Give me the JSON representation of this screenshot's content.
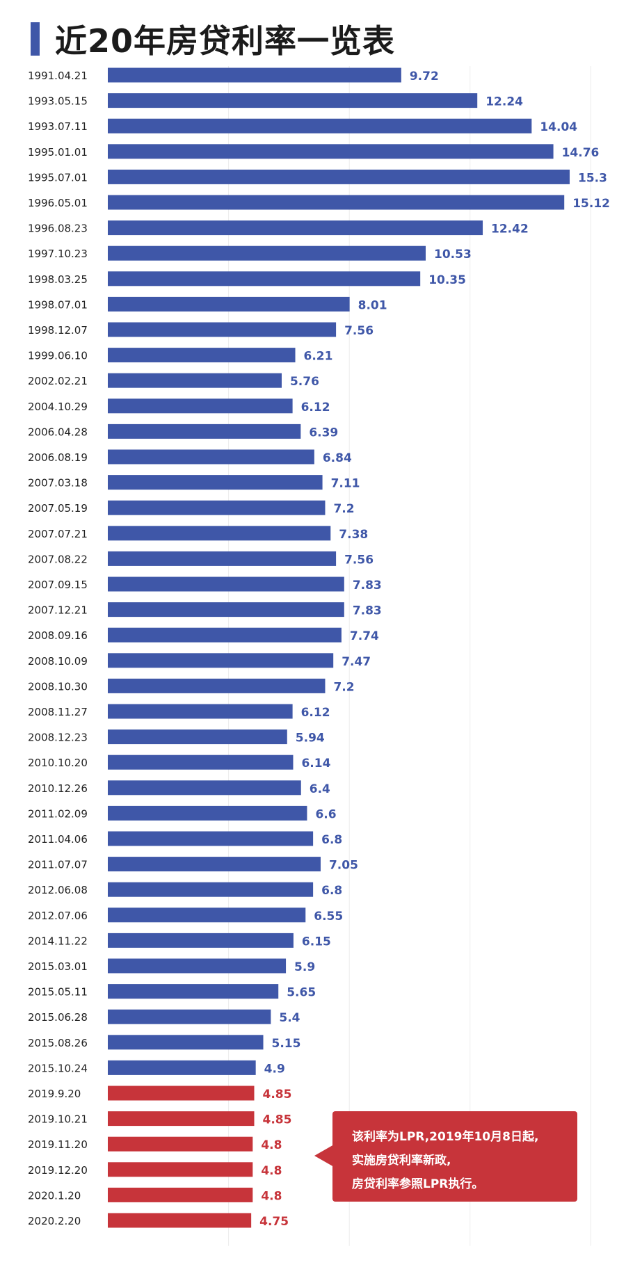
{
  "title": "近20年房贷利率一览表",
  "colors": {
    "accent": "#3f57a8",
    "highlight": "#c7343a"
  },
  "annotation": {
    "lines": [
      "该利率为LPR,2019年10月8日起,",
      "实施房贷利率新政,",
      "房贷利率参照LPR执行。"
    ]
  },
  "chart_data": {
    "type": "bar",
    "orientation": "horizontal",
    "title": "近20年房贷利率一览表",
    "xlim": [
      0,
      16
    ],
    "grid": true,
    "categories": [
      "1991.04.21",
      "1993.05.15",
      "1993.07.11",
      "1995.01.01",
      "1995.07.01",
      "1996.05.01",
      "1996.08.23",
      "1997.10.23",
      "1998.03.25",
      "1998.07.01",
      "1998.12.07",
      "1999.06.10",
      "2002.02.21",
      "2004.10.29",
      "2006.04.28",
      "2006.08.19",
      "2007.03.18",
      "2007.05.19",
      "2007.07.21",
      "2007.08.22",
      "2007.09.15",
      "2007.12.21",
      "2008.09.16",
      "2008.10.09",
      "2008.10.30",
      "2008.11.27",
      "2008.12.23",
      "2010.10.20",
      "2010.12.26",
      "2011.02.09",
      "2011.04.06",
      "2011.07.07",
      "2012.06.08",
      "2012.07.06",
      "2014.11.22",
      "2015.03.01",
      "2015.05.11",
      "2015.06.28",
      "2015.08.26",
      "2015.10.24",
      "2019.9.20",
      "2019.10.21",
      "2019.11.20",
      "2019.12.20",
      "2020.1.20",
      "2020.2.20"
    ],
    "values": [
      9.72,
      12.24,
      14.04,
      14.76,
      15.3,
      15.12,
      12.42,
      10.53,
      10.35,
      8.01,
      7.56,
      6.21,
      5.76,
      6.12,
      6.39,
      6.84,
      7.11,
      7.2,
      7.38,
      7.56,
      7.83,
      7.83,
      7.74,
      7.47,
      7.2,
      6.12,
      5.94,
      6.14,
      6.4,
      6.6,
      6.8,
      7.05,
      6.8,
      6.55,
      6.15,
      5.9,
      5.65,
      5.4,
      5.15,
      4.9,
      4.85,
      4.85,
      4.8,
      4.8,
      4.8,
      4.75
    ],
    "value_labels": [
      "9.72",
      "12.24",
      "14.04",
      "14.76",
      "15.3",
      "15.12",
      "12.42",
      "10.53",
      "10.35",
      "8.01",
      "7.56",
      "6.21",
      "5.76",
      "6.12",
      "6.39",
      "6.84",
      "7.11",
      "7.2",
      "7.38",
      "7.56",
      "7.83",
      "7.83",
      "7.74",
      "7.47",
      "7.2",
      "6.12",
      "5.94",
      "6.14",
      "6.4",
      "6.6",
      "6.8",
      "7.05",
      "6.8",
      "6.55",
      "6.15",
      "5.9",
      "5.65",
      "5.4",
      "5.15",
      "4.9",
      "4.85",
      "4.85",
      "4.8",
      "4.8",
      "4.8",
      "4.75"
    ],
    "highlight_from_index": 40
  }
}
